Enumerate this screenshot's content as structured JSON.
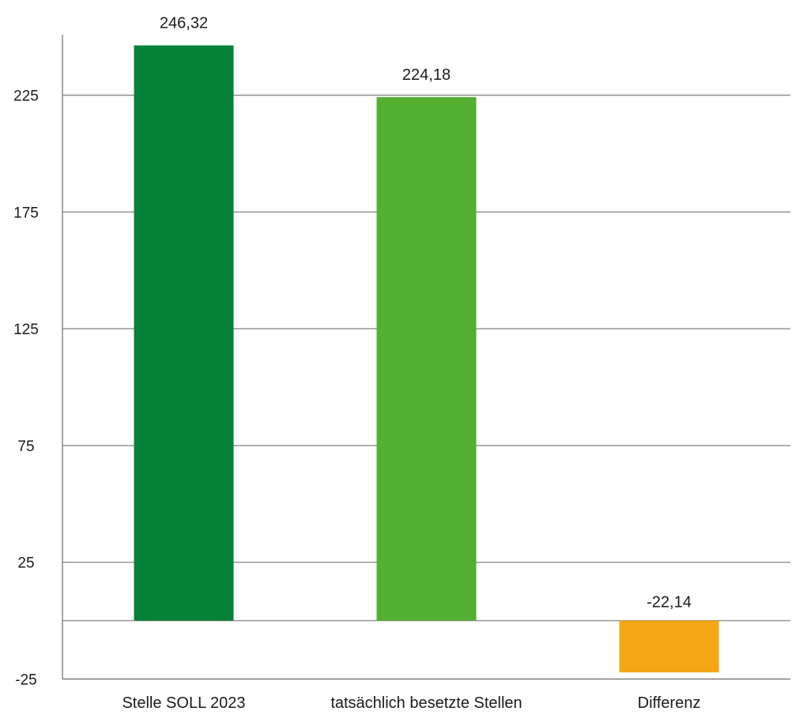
{
  "chart_data": {
    "type": "bar",
    "categories": [
      "Stelle SOLL 2023",
      "tatsächlich besetzte Stellen",
      "Differenz"
    ],
    "values": [
      246.32,
      224.18,
      -22.14
    ],
    "data_labels": [
      "246,32",
      "224,18",
      "-22,14"
    ],
    "colors": [
      "#058238",
      "#54AE32",
      "#F5A614"
    ],
    "yticks": [
      -25,
      25,
      75,
      125,
      175,
      225
    ],
    "ytick_labels": [
      "-25",
      "25",
      "75",
      "125",
      "175",
      "225"
    ],
    "ylim": [
      -25,
      250
    ],
    "grid": true,
    "title": "",
    "xlabel": "",
    "ylabel": ""
  }
}
